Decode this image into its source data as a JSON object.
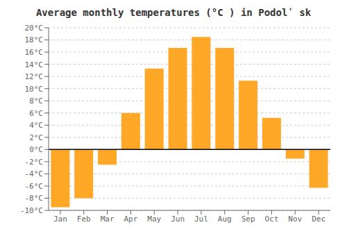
{
  "chart_data": {
    "type": "bar",
    "title": "Average monthly temperatures (°C ) in Podolʹ sk",
    "categories": [
      "Jan",
      "Feb",
      "Mar",
      "Apr",
      "May",
      "Jun",
      "Jul",
      "Aug",
      "Sep",
      "Oct",
      "Nov",
      "Dec"
    ],
    "values": [
      -9.5,
      -8.0,
      -2.5,
      6.0,
      13.3,
      16.7,
      18.5,
      16.7,
      11.3,
      5.2,
      -1.5,
      -6.3
    ],
    "color": "#FFA726",
    "ylim": [
      -10,
      20
    ],
    "yticks": [
      {
        "value": -10,
        "label": "-10°C"
      },
      {
        "value": -8,
        "label": "-8°C"
      },
      {
        "value": -6,
        "label": "-6°C"
      },
      {
        "value": -4,
        "label": "-4°C"
      },
      {
        "value": -2,
        "label": "-2°C"
      },
      {
        "value": 0,
        "label": "0°C"
      },
      {
        "value": 2,
        "label": "2°C"
      },
      {
        "value": 4,
        "label": "4°C"
      },
      {
        "value": 6,
        "label": "6°C"
      },
      {
        "value": 8,
        "label": "8°C"
      },
      {
        "value": 10,
        "label": "10°C"
      },
      {
        "value": 12,
        "label": "12°C"
      },
      {
        "value": 14,
        "label": "14°C"
      },
      {
        "value": 16,
        "label": "16°C"
      },
      {
        "value": 18,
        "label": "18°C"
      },
      {
        "value": 20,
        "label": "20°C"
      }
    ],
    "grid": true
  }
}
